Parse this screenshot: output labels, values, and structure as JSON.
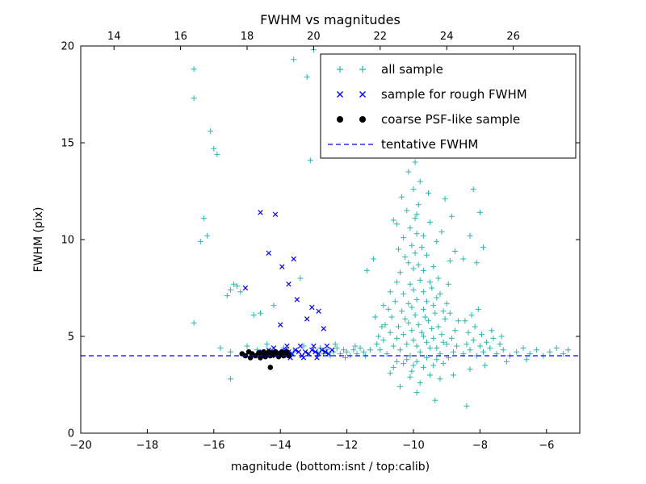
{
  "chart_data": {
    "type": "scatter",
    "title": "FWHM vs magnitudes",
    "xlabel": "magnitude (bottom:isnt / top:calib)",
    "ylabel": "FWHM (pix)",
    "grid": false,
    "legend_position": "upper right",
    "axes": {
      "xlim": [
        -20,
        -5
      ],
      "ylim": [
        0,
        20
      ],
      "bottom_ticks": {
        "values": [
          -20,
          -18,
          -16,
          -14,
          -12,
          -10,
          -8,
          -6
        ],
        "labels": [
          "−20",
          "−18",
          "−16",
          "−14",
          "−12",
          "−10",
          "−8",
          "−6"
        ]
      },
      "top_ticks": {
        "values_in_bottom_scale": [
          -19,
          -17,
          -15,
          -13,
          -11,
          -9,
          -7
        ],
        "labels": [
          "14",
          "16",
          "18",
          "20",
          "22",
          "24",
          "26"
        ]
      },
      "left_ticks": {
        "values": [
          0,
          5,
          10,
          15,
          20
        ],
        "labels": [
          "0",
          "5",
          "10",
          "15",
          "20"
        ]
      }
    },
    "series": [
      {
        "name": "all sample",
        "marker": "plus",
        "color": "#2cb5ad",
        "points": [
          [
            -16.6,
            18.8
          ],
          [
            -16.6,
            17.3
          ],
          [
            -16.1,
            15.6
          ],
          [
            -16.0,
            14.7
          ],
          [
            -15.9,
            14.4
          ],
          [
            -13.6,
            19.3
          ],
          [
            -13.0,
            19.8
          ],
          [
            -13.2,
            18.4
          ],
          [
            -13.1,
            14.1
          ],
          [
            -16.3,
            11.1
          ],
          [
            -16.2,
            10.2
          ],
          [
            -16.4,
            9.9
          ],
          [
            -15.5,
            7.4
          ],
          [
            -15.4,
            7.7
          ],
          [
            -15.6,
            7.1
          ],
          [
            -15.3,
            7.6
          ],
          [
            -15.2,
            7.3
          ],
          [
            -14.8,
            6.1
          ],
          [
            -14.6,
            6.2
          ],
          [
            -14.2,
            6.6
          ],
          [
            -13.4,
            8.0
          ],
          [
            -15.8,
            4.4
          ],
          [
            -15.5,
            4.2
          ],
          [
            -15.0,
            4.5
          ],
          [
            -14.7,
            4.3
          ],
          [
            -14.4,
            4.6
          ],
          [
            -13.9,
            4.4
          ],
          [
            -13.6,
            4.2
          ],
          [
            -13.3,
            4.5
          ],
          [
            -15.5,
            2.8
          ],
          [
            -16.6,
            5.7
          ],
          [
            -12.9,
            4.2
          ],
          [
            -12.8,
            4.4
          ],
          [
            -12.7,
            4.1
          ],
          [
            -12.6,
            4.3
          ],
          [
            -12.5,
            4.0
          ],
          [
            -12.4,
            4.2
          ],
          [
            -12.3,
            4.4
          ],
          [
            -12.2,
            4.1
          ],
          [
            -12.1,
            4.3
          ],
          [
            -12.0,
            4.2
          ],
          [
            -11.9,
            4.0
          ],
          [
            -11.8,
            4.3
          ],
          [
            -11.7,
            4.1
          ],
          [
            -11.6,
            4.4
          ],
          [
            -11.5,
            4.2
          ],
          [
            -12.35,
            4.6
          ],
          [
            -12.05,
            3.9
          ],
          [
            -11.75,
            4.5
          ],
          [
            -11.45,
            4.0
          ],
          [
            -11.3,
            4.3
          ],
          [
            -10.8,
            4.1
          ],
          [
            -10.4,
            4.3
          ],
          [
            -10.1,
            4.0
          ],
          [
            -9.8,
            4.2
          ],
          [
            -9.5,
            4.4
          ],
          [
            -9.2,
            4.1
          ],
          [
            -10.6,
            4.5
          ],
          [
            -10.2,
            4.6
          ],
          [
            -9.9,
            4.5
          ],
          [
            -9.6,
            4.7
          ],
          [
            -9.3,
            4.4
          ],
          [
            -9.0,
            4.6
          ],
          [
            -10.9,
            4.8
          ],
          [
            -10.5,
            4.9
          ],
          [
            -10.0,
            4.8
          ],
          [
            -9.7,
            5.0
          ],
          [
            -9.4,
            4.9
          ],
          [
            -9.1,
            4.7
          ],
          [
            -10.7,
            5.2
          ],
          [
            -10.3,
            5.1
          ],
          [
            -10.05,
            5.3
          ],
          [
            -9.75,
            5.2
          ],
          [
            -9.45,
            5.4
          ],
          [
            -9.15,
            5.1
          ],
          [
            -10.85,
            5.6
          ],
          [
            -10.45,
            5.5
          ],
          [
            -10.15,
            5.7
          ],
          [
            -9.85,
            5.6
          ],
          [
            -9.55,
            5.8
          ],
          [
            -9.25,
            5.5
          ],
          [
            -10.65,
            6.0
          ],
          [
            -10.25,
            5.9
          ],
          [
            -9.95,
            6.1
          ],
          [
            -9.65,
            6.0
          ],
          [
            -9.35,
            6.2
          ],
          [
            -9.05,
            5.9
          ],
          [
            -10.75,
            6.4
          ],
          [
            -10.35,
            6.3
          ],
          [
            -10.05,
            6.5
          ],
          [
            -9.7,
            6.4
          ],
          [
            -9.4,
            6.6
          ],
          [
            -9.1,
            6.3
          ],
          [
            -10.55,
            6.8
          ],
          [
            -10.15,
            6.7
          ],
          [
            -9.9,
            6.9
          ],
          [
            -9.6,
            6.8
          ],
          [
            -9.3,
            7.0
          ],
          [
            -9.0,
            6.7
          ],
          [
            -10.7,
            7.3
          ],
          [
            -10.3,
            7.2
          ],
          [
            -10.0,
            7.4
          ],
          [
            -9.7,
            7.3
          ],
          [
            -9.45,
            7.5
          ],
          [
            -9.2,
            7.2
          ],
          [
            -10.5,
            7.8
          ],
          [
            -10.1,
            7.7
          ],
          [
            -9.8,
            7.9
          ],
          [
            -9.5,
            7.8
          ],
          [
            -9.25,
            8.0
          ],
          [
            -8.95,
            7.7
          ],
          [
            -11.0,
            4.3
          ],
          [
            -11.1,
            4.6
          ],
          [
            -11.05,
            5.0
          ],
          [
            -10.95,
            5.5
          ],
          [
            -11.15,
            6.0
          ],
          [
            -10.9,
            6.6
          ],
          [
            -8.8,
            4.2
          ],
          [
            -8.7,
            4.5
          ],
          [
            -8.85,
            4.9
          ],
          [
            -8.75,
            5.3
          ],
          [
            -8.65,
            5.8
          ],
          [
            -8.9,
            6.2
          ],
          [
            -10.2,
            3.8
          ],
          [
            -9.9,
            3.7
          ],
          [
            -9.6,
            3.9
          ],
          [
            -9.3,
            3.8
          ],
          [
            -10.5,
            3.7
          ],
          [
            -8.95,
            3.9
          ],
          [
            -10.0,
            3.5
          ],
          [
            -9.7,
            3.4
          ],
          [
            -10.3,
            3.6
          ],
          [
            -9.4,
            3.5
          ],
          [
            -9.1,
            3.6
          ],
          [
            -10.6,
            3.4
          ],
          [
            -10.4,
            8.3
          ],
          [
            -10.0,
            8.5
          ],
          [
            -9.7,
            8.4
          ],
          [
            -9.4,
            8.6
          ],
          [
            -10.15,
            8.8
          ],
          [
            -9.85,
            8.7
          ],
          [
            -10.25,
            9.1
          ],
          [
            -9.95,
            9.3
          ],
          [
            -9.6,
            9.2
          ],
          [
            -10.45,
            9.5
          ],
          [
            -10.05,
            9.7
          ],
          [
            -9.75,
            9.6
          ],
          [
            -10.3,
            10.1
          ],
          [
            -9.9,
            10.3
          ],
          [
            -10.1,
            10.6
          ],
          [
            -9.7,
            10.2
          ],
          [
            -10.5,
            10.8
          ],
          [
            -9.95,
            11.1
          ],
          [
            -10.2,
            11.5
          ],
          [
            -9.85,
            11.8
          ],
          [
            -10.35,
            12.2
          ],
          [
            -10.0,
            12.6
          ],
          [
            -9.8,
            13.0
          ],
          [
            -10.15,
            13.5
          ],
          [
            -9.95,
            14.0
          ],
          [
            -10.25,
            14.4
          ],
          [
            -9.9,
            11.3
          ],
          [
            -10.6,
            11.0
          ],
          [
            -9.5,
            10.9
          ],
          [
            -9.3,
            9.9
          ],
          [
            -8.9,
            8.9
          ],
          [
            -8.75,
            9.4
          ],
          [
            -9.15,
            10.4
          ],
          [
            -8.85,
            11.2
          ],
          [
            -9.05,
            12.1
          ],
          [
            -9.55,
            12.4
          ],
          [
            -8.2,
            12.6
          ],
          [
            -8.0,
            11.4
          ],
          [
            -8.3,
            10.2
          ],
          [
            -7.9,
            9.6
          ],
          [
            -8.1,
            8.8
          ],
          [
            -8.5,
            9.0
          ],
          [
            -11.4,
            8.4
          ],
          [
            -11.2,
            9.0
          ],
          [
            -10.1,
            2.9
          ],
          [
            -9.8,
            2.6
          ],
          [
            -9.5,
            3.0
          ],
          [
            -10.4,
            2.4
          ],
          [
            -9.2,
            2.8
          ],
          [
            -9.9,
            2.1
          ],
          [
            -10.7,
            3.1
          ],
          [
            -8.8,
            3.0
          ],
          [
            -9.35,
            1.7
          ],
          [
            -10.05,
            3.2
          ],
          [
            -8.4,
            1.4
          ],
          [
            -8.5,
            4.1
          ],
          [
            -8.3,
            4.3
          ],
          [
            -8.1,
            4.0
          ],
          [
            -7.9,
            4.2
          ],
          [
            -7.7,
            4.4
          ],
          [
            -7.5,
            4.1
          ],
          [
            -7.3,
            4.3
          ],
          [
            -7.1,
            4.0
          ],
          [
            -6.9,
            4.2
          ],
          [
            -6.7,
            4.4
          ],
          [
            -8.4,
            4.6
          ],
          [
            -8.2,
            4.8
          ],
          [
            -8.0,
            4.5
          ],
          [
            -7.8,
            4.7
          ],
          [
            -7.6,
            4.9
          ],
          [
            -7.4,
            4.6
          ],
          [
            -8.35,
            5.2
          ],
          [
            -8.15,
            5.5
          ],
          [
            -7.95,
            5.1
          ],
          [
            -8.45,
            5.8
          ],
          [
            -8.25,
            6.1
          ],
          [
            -8.05,
            6.4
          ],
          [
            -7.65,
            5.3
          ],
          [
            -7.35,
            5.0
          ],
          [
            -6.5,
            4.1
          ],
          [
            -6.3,
            4.3
          ],
          [
            -6.1,
            4.0
          ],
          [
            -5.9,
            4.2
          ],
          [
            -5.7,
            4.4
          ],
          [
            -5.5,
            4.1
          ],
          [
            -6.6,
            3.8
          ],
          [
            -7.2,
            3.7
          ],
          [
            -7.85,
            3.5
          ],
          [
            -8.3,
            3.3
          ],
          [
            -5.35,
            4.3
          ]
        ]
      },
      {
        "name": "sample for rough FWHM",
        "marker": "x",
        "color": "#0000ff",
        "points": [
          [
            -14.55,
            4.2
          ],
          [
            -14.45,
            4.1
          ],
          [
            -14.35,
            4.3
          ],
          [
            -14.25,
            4.2
          ],
          [
            -14.15,
            4.0
          ],
          [
            -14.05,
            4.2
          ],
          [
            -13.95,
            4.1
          ],
          [
            -13.85,
            4.3
          ],
          [
            -13.75,
            4.2
          ],
          [
            -13.65,
            4.1
          ],
          [
            -13.55,
            4.3
          ],
          [
            -13.45,
            4.2
          ],
          [
            -13.35,
            4.0
          ],
          [
            -13.25,
            4.2
          ],
          [
            -13.15,
            4.1
          ],
          [
            -13.05,
            4.3
          ],
          [
            -12.95,
            4.2
          ],
          [
            -12.85,
            4.1
          ],
          [
            -12.75,
            4.3
          ],
          [
            -12.65,
            4.2
          ],
          [
            -12.55,
            4.1
          ],
          [
            -12.45,
            4.3
          ],
          [
            -13.0,
            4.5
          ],
          [
            -13.4,
            4.5
          ],
          [
            -13.8,
            4.5
          ],
          [
            -14.2,
            4.4
          ],
          [
            -12.6,
            4.5
          ],
          [
            -12.9,
            3.9
          ],
          [
            -13.3,
            3.9
          ],
          [
            -13.7,
            3.9
          ],
          [
            -14.6,
            11.4
          ],
          [
            -14.15,
            11.3
          ],
          [
            -14.35,
            9.3
          ],
          [
            -13.95,
            8.6
          ],
          [
            -13.6,
            9.0
          ],
          [
            -15.05,
            7.5
          ],
          [
            -13.75,
            7.7
          ],
          [
            -13.5,
            6.9
          ],
          [
            -13.05,
            6.5
          ],
          [
            -12.85,
            6.3
          ],
          [
            -13.2,
            5.9
          ],
          [
            -12.7,
            5.4
          ],
          [
            -14.0,
            5.6
          ]
        ]
      },
      {
        "name": "coarse PSF-like sample",
        "marker": "circle",
        "color": "#000000",
        "points": [
          [
            -15.15,
            4.1
          ],
          [
            -15.05,
            4.0
          ],
          [
            -14.95,
            4.2
          ],
          [
            -14.85,
            4.1
          ],
          [
            -14.75,
            4.0
          ],
          [
            -14.65,
            4.15
          ],
          [
            -14.55,
            4.05
          ],
          [
            -14.5,
            4.2
          ],
          [
            -14.45,
            3.95
          ],
          [
            -14.4,
            4.1
          ],
          [
            -14.35,
            4.2
          ],
          [
            -14.3,
            4.0
          ],
          [
            -14.25,
            4.15
          ],
          [
            -14.2,
            4.05
          ],
          [
            -14.15,
            4.2
          ],
          [
            -14.1,
            4.1
          ],
          [
            -14.05,
            3.95
          ],
          [
            -14.0,
            4.1
          ],
          [
            -13.95,
            4.2
          ],
          [
            -13.9,
            4.0
          ],
          [
            -13.85,
            4.1
          ],
          [
            -13.8,
            4.2
          ],
          [
            -14.6,
            3.9
          ],
          [
            -14.9,
            3.9
          ],
          [
            -13.75,
            4.0
          ],
          [
            -14.3,
            3.4
          ]
        ]
      },
      {
        "name": "tentative FWHM",
        "type": "hline",
        "linestyle": "dashed",
        "color": "#0000ff",
        "y": 4.0
      }
    ]
  }
}
